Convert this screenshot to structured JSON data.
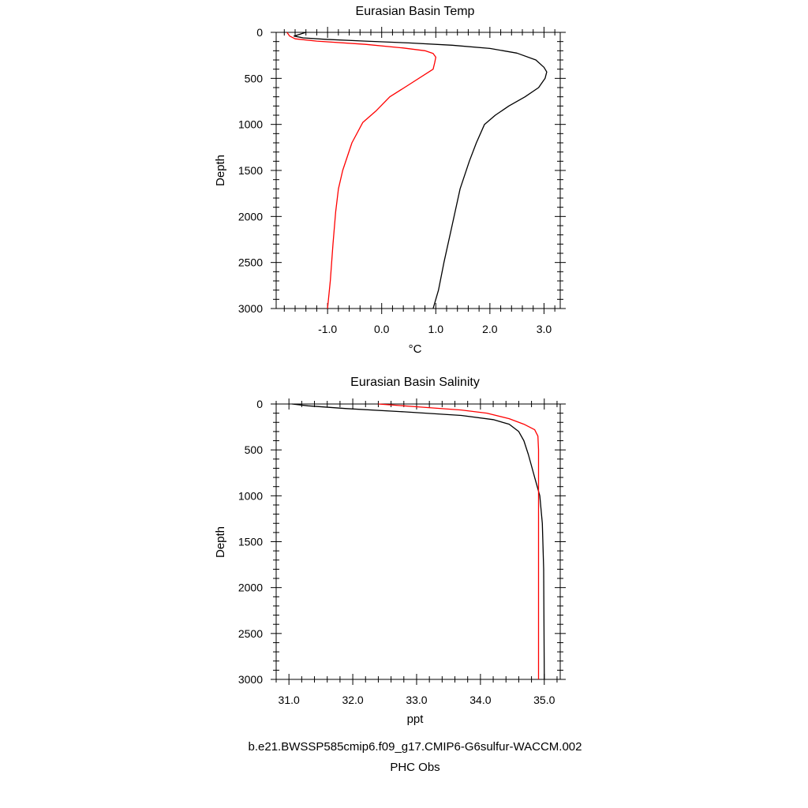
{
  "colors": {
    "model": "#000000",
    "obs": "#ff0000",
    "axis": "#000000"
  },
  "caption": {
    "model_run": "b.e21.BWSSP585cmip6.f09_g17.CMIP6-G6sulfur-WACCM.002",
    "obs_label": "PHC Obs"
  },
  "chart_data": [
    {
      "type": "line",
      "title": "Eurasian Basin Temp",
      "xlabel": "°C",
      "ylabel": "Depth",
      "xlim": [
        -1.95,
        3.3
      ],
      "ylim": [
        3000,
        0
      ],
      "y_inverted": true,
      "x_major_ticks": [
        -1.0,
        0.0,
        1.0,
        2.0,
        3.0
      ],
      "x_tick_labels": [
        "-1.0",
        "0.0",
        "1.0",
        "2.0",
        "3.0"
      ],
      "x_minor_step": 0.2,
      "y_major_ticks": [
        0,
        500,
        1000,
        1500,
        2000,
        2500,
        3000
      ],
      "y_tick_labels": [
        "0",
        "500",
        "1000",
        "1500",
        "2000",
        "2500",
        "3000"
      ],
      "y_minor_step": 100,
      "grid": false,
      "series": [
        {
          "color": "#000000",
          "points": [
            [
              -1.4,
              0
            ],
            [
              -1.62,
              40
            ],
            [
              -1.45,
              60
            ],
            [
              -1.05,
              75
            ],
            [
              -0.3,
              95
            ],
            [
              0.5,
              115
            ],
            [
              1.3,
              140
            ],
            [
              2.0,
              175
            ],
            [
              2.5,
              225
            ],
            [
              2.85,
              300
            ],
            [
              3.0,
              380
            ],
            [
              3.05,
              430
            ],
            [
              3.02,
              500
            ],
            [
              2.9,
              600
            ],
            [
              2.65,
              700
            ],
            [
              2.35,
              800
            ],
            [
              2.1,
              900
            ],
            [
              1.9,
              1000
            ],
            [
              1.75,
              1200
            ],
            [
              1.62,
              1400
            ],
            [
              1.45,
              1700
            ],
            [
              1.3,
              2100
            ],
            [
              1.15,
              2500
            ],
            [
              1.05,
              2800
            ],
            [
              0.95,
              3000
            ]
          ]
        },
        {
          "color": "#ff0000",
          "points": [
            [
              -1.75,
              0
            ],
            [
              -1.7,
              40
            ],
            [
              -1.6,
              70
            ],
            [
              -1.2,
              95
            ],
            [
              -0.3,
              130
            ],
            [
              0.4,
              170
            ],
            [
              0.8,
              200
            ],
            [
              0.95,
              230
            ],
            [
              1.0,
              270
            ],
            [
              0.98,
              330
            ],
            [
              0.95,
              400
            ],
            [
              0.5,
              570
            ],
            [
              0.15,
              700
            ],
            [
              -0.1,
              850
            ],
            [
              -0.35,
              980
            ],
            [
              -0.55,
              1200
            ],
            [
              -0.72,
              1500
            ],
            [
              -0.8,
              1700
            ],
            [
              -0.85,
              1950
            ],
            [
              -0.9,
              2300
            ],
            [
              -0.95,
              2700
            ],
            [
              -1.0,
              3000
            ]
          ]
        }
      ]
    },
    {
      "type": "line",
      "title": "Eurasian Basin Salinity",
      "xlabel": "ppt",
      "ylabel": "Depth",
      "xlim": [
        30.8,
        35.25
      ],
      "ylim": [
        3000,
        0
      ],
      "y_inverted": true,
      "x_major_ticks": [
        31.0,
        32.0,
        33.0,
        34.0,
        35.0
      ],
      "x_tick_labels": [
        "31.0",
        "32.0",
        "33.0",
        "34.0",
        "35.0"
      ],
      "x_minor_step": 0.2,
      "y_major_ticks": [
        0,
        500,
        1000,
        1500,
        2000,
        2500,
        3000
      ],
      "y_tick_labels": [
        "0",
        "500",
        "1000",
        "1500",
        "2000",
        "2500",
        "3000"
      ],
      "y_minor_step": 100,
      "grid": false,
      "series": [
        {
          "color": "#000000",
          "points": [
            [
              31.05,
              0
            ],
            [
              31.3,
              20
            ],
            [
              31.9,
              50
            ],
            [
              32.8,
              85
            ],
            [
              33.7,
              125
            ],
            [
              34.2,
              170
            ],
            [
              34.45,
              220
            ],
            [
              34.6,
              300
            ],
            [
              34.68,
              400
            ],
            [
              34.75,
              550
            ],
            [
              34.85,
              800
            ],
            [
              34.93,
              1000
            ],
            [
              34.97,
              1300
            ],
            [
              34.99,
              1800
            ],
            [
              35.0,
              3000
            ]
          ]
        },
        {
          "color": "#ff0000",
          "points": [
            [
              32.4,
              0
            ],
            [
              33.0,
              30
            ],
            [
              33.7,
              65
            ],
            [
              34.1,
              100
            ],
            [
              34.45,
              160
            ],
            [
              34.68,
              220
            ],
            [
              34.85,
              280
            ],
            [
              34.9,
              350
            ],
            [
              34.91,
              500
            ],
            [
              34.91,
              1000
            ],
            [
              34.91,
              2000
            ],
            [
              34.91,
              3000
            ]
          ]
        }
      ]
    }
  ]
}
